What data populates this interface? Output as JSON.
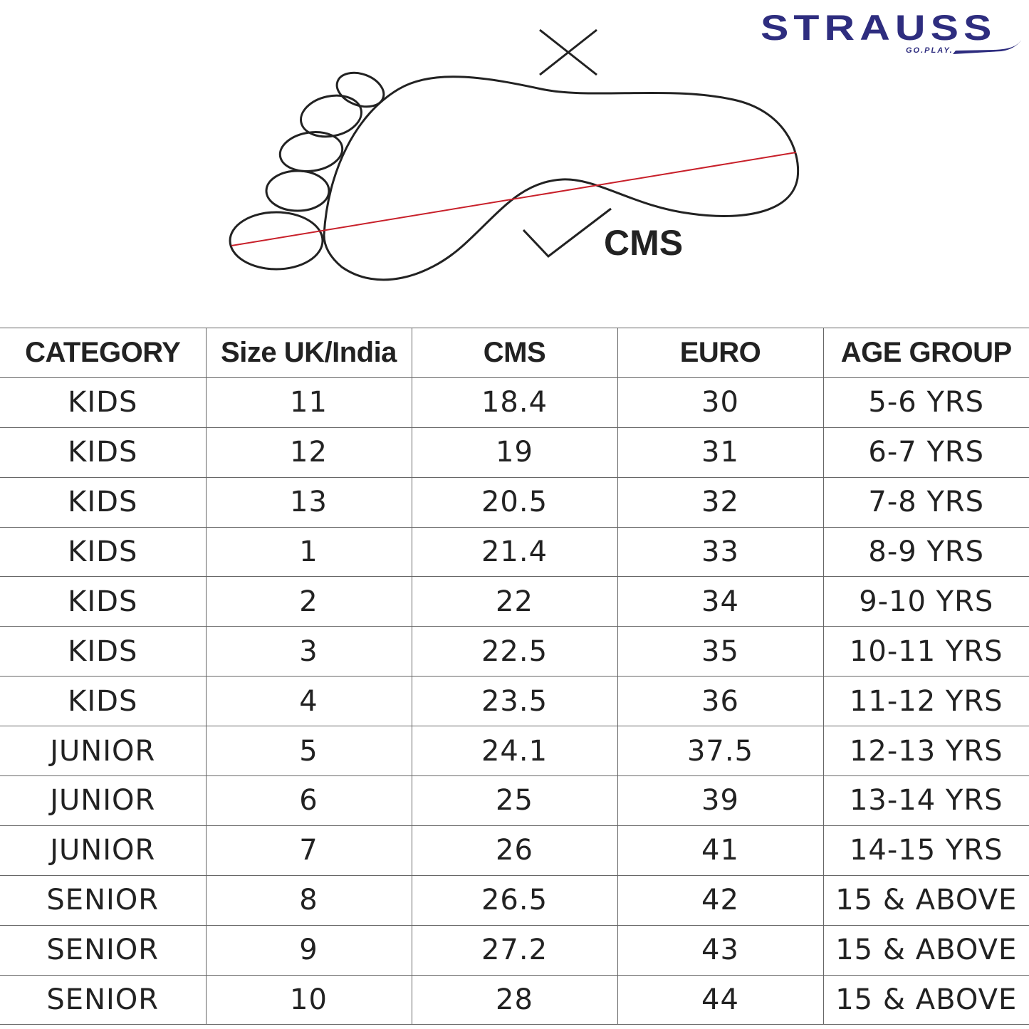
{
  "brand": {
    "name": "STRAUSS",
    "tagline": "GO.PLAY.",
    "color": "#2e2d7f"
  },
  "diagram": {
    "measure_label": "CMS",
    "wrong_mark_icon": "cross-icon",
    "right_mark_icon": "check-icon",
    "measure_line_color": "#c8202a"
  },
  "table": {
    "headers": [
      "CATEGORY",
      "Size UK/India",
      "CMS",
      "EURO",
      "AGE GROUP"
    ],
    "rows": [
      [
        "KIDS",
        "11",
        "18.4",
        "30",
        "5-6 YRS"
      ],
      [
        "KIDS",
        "12",
        "19",
        "31",
        "6-7 YRS"
      ],
      [
        "KIDS",
        "13",
        "20.5",
        "32",
        "7-8 YRS"
      ],
      [
        "KIDS",
        "1",
        "21.4",
        "33",
        "8-9 YRS"
      ],
      [
        "KIDS",
        "2",
        "22",
        "34",
        "9-10 YRS"
      ],
      [
        "KIDS",
        "3",
        "22.5",
        "35",
        "10-11 YRS"
      ],
      [
        "KIDS",
        "4",
        "23.5",
        "36",
        "11-12 YRS"
      ],
      [
        "JUNIOR",
        "5",
        "24.1",
        "37.5",
        "12-13 YRS"
      ],
      [
        "JUNIOR",
        "6",
        "25",
        "39",
        "13-14 YRS"
      ],
      [
        "JUNIOR",
        "7",
        "26",
        "41",
        "14-15 YRS"
      ],
      [
        "SENIOR",
        "8",
        "26.5",
        "42",
        "15 & ABOVE"
      ],
      [
        "SENIOR",
        "9",
        "27.2",
        "43",
        "15 & ABOVE"
      ],
      [
        "SENIOR",
        "10",
        "28",
        "44",
        "15 & ABOVE"
      ]
    ]
  }
}
